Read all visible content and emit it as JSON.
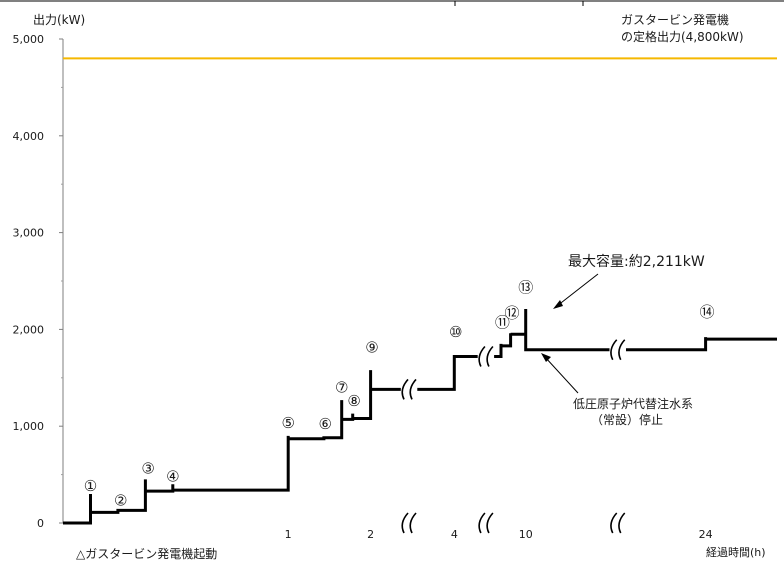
{
  "chart_data": {
    "type": "line",
    "ylabel": "出力(kW)",
    "xlabel": "経過時間(h)",
    "ylim": [
      0,
      5000
    ],
    "y_ticks": [
      "0",
      "1,000",
      "2,000",
      "3,000",
      "4,000",
      "5,000"
    ],
    "y_tick_values": [
      0,
      1000,
      2000,
      3000,
      4000,
      5000
    ],
    "x_ticks": [
      "1",
      "2",
      "4",
      "10",
      "24"
    ],
    "grid": false,
    "start_label": "△ガスタービン発電機起動",
    "rated_line": {
      "label_line1": "ガスタービン発電機",
      "label_line2": "の定格出力(4,800kW)",
      "value": 4800,
      "color": "#f5b800"
    },
    "max_label": "最大容量:約2,211kW",
    "stop_label_line1": "低圧原子炉代替注水系",
    "stop_label_line2": "（常設）停止",
    "steps": [
      "①",
      "②",
      "③",
      "④",
      "⑤",
      "⑥",
      "⑦",
      "⑧",
      "⑨",
      "⑩",
      "⑪",
      "⑫",
      "⑬",
      "⑭"
    ],
    "series": [
      {
        "color": "#000000",
        "segments": [
          [
            [
              0,
              0
            ],
            [
              20,
              0
            ],
            [
              20,
              300
            ],
            [
              20,
              110
            ],
            [
              40,
              110
            ],
            [
              40,
              130
            ],
            [
              60,
              130
            ],
            [
              60,
              450
            ],
            [
              60,
              330
            ],
            [
              80,
              330
            ],
            [
              80,
              400
            ],
            [
              80,
              340
            ],
            [
              100,
              340
            ],
            [
              164,
              340
            ],
            [
              164,
              900
            ],
            [
              164,
              870
            ],
            [
              190,
              870
            ],
            [
              190,
              880
            ],
            [
              203,
              880
            ],
            [
              203,
              1270
            ],
            [
              203,
              1070
            ],
            [
              211,
              1070
            ],
            [
              211,
              1130
            ],
            [
              211,
              1080
            ],
            [
              224,
              1080
            ],
            [
              224,
              1580
            ],
            [
              224,
              1380
            ],
            [
              246,
              1380
            ]
          ],
          [
            [
              258,
              1380
            ],
            [
              285,
              1380
            ],
            [
              285,
              1720
            ],
            [
              285,
              1720
            ],
            [
              302,
              1720
            ]
          ],
          [
            [
              314,
              1720
            ],
            [
              319,
              1720
            ],
            [
              319,
              1850
            ],
            [
              319,
              1830
            ],
            [
              326,
              1830
            ],
            [
              326,
              1960
            ],
            [
              326,
              1950
            ],
            [
              337,
              1950
            ],
            [
              337,
              2211
            ],
            [
              337,
              1790
            ],
            [
              398,
              1790
            ]
          ],
          [
            [
              410,
              1790
            ],
            [
              468,
              1790
            ],
            [
              468,
              1920
            ],
            [
              468,
              1900
            ],
            [
              520,
              1900
            ]
          ]
        ]
      }
    ]
  }
}
